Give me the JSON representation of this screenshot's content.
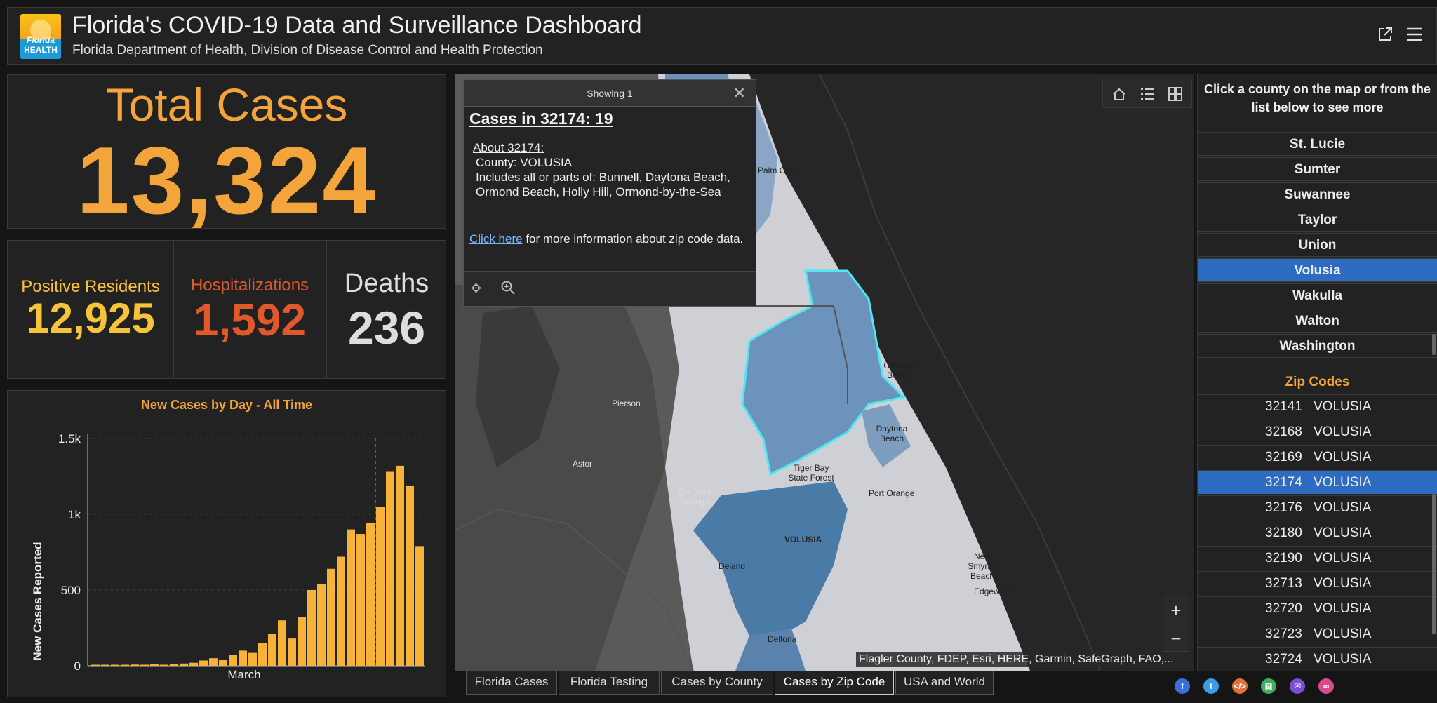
{
  "header": {
    "logo_text_top": "Florida",
    "logo_text_bottom": "HEALTH",
    "title": "Florida's COVID-19 Data and Surveillance Dashboard",
    "subtitle": "Florida Department of Health, Division of Disease Control and Health Protection"
  },
  "total_cases": {
    "label": "Total Cases",
    "value": "13,324"
  },
  "stats": [
    {
      "label": "Positive Residents",
      "value": "12,925",
      "color": "#f7c33b"
    },
    {
      "label": "Hospitalizations",
      "value": "1,592",
      "color": "#e0592a"
    },
    {
      "label": "Deaths",
      "value": "236",
      "color": "#dddddd"
    }
  ],
  "chart_data": {
    "type": "bar",
    "title": "New Cases by Day - All Time",
    "ylabel": "New Cases Reported",
    "xlabel": "",
    "x_tick_labels": [
      "March"
    ],
    "y_ticks": [
      "0",
      "500",
      "1k",
      "1.5k"
    ],
    "ylim": [
      0,
      1500
    ],
    "values": [
      2,
      0,
      5,
      4,
      8,
      5,
      12,
      6,
      10,
      15,
      20,
      35,
      50,
      40,
      70,
      100,
      85,
      150,
      210,
      300,
      180,
      320,
      500,
      540,
      640,
      720,
      900,
      870,
      940,
      1050,
      1280,
      1320,
      1190,
      790
    ],
    "marker_index": 29,
    "bar_color": "#f7b23a"
  },
  "map": {
    "popup": {
      "header": "Showing 1",
      "title": "Cases in 32174: 19",
      "about": "About 32174:",
      "county": "County: VOLUSIA",
      "includes": "Includes all or parts of: Bunnell, Daytona Beach, Ormond Beach, Holly Hill, Ormond-by-the-Sea",
      "link": "Click here",
      "link_rest": "for more information about zip code data."
    },
    "labels": {
      "palm_coast": "Palm Coast",
      "ormond_beach": "Ormond Beach",
      "daytona_beach": "Daytona Beach",
      "pierson": "Pierson",
      "astor": "Astor",
      "de_leon_springs": "De Leon Springs",
      "tiger_bay": "Tiger Bay State Forest",
      "port_orange": "Port Orange",
      "volusia": "VOLUSIA",
      "deland": "Deland",
      "new_smyrna": "New Smyrna Beach",
      "edgewater": "Edgewater",
      "deltona": "Deltona"
    },
    "attribution": "Flagler County, FDEP, Esri, HERE, Garmin, SafeGraph, FAO,...",
    "zoom_in": "+",
    "zoom_out": "−"
  },
  "sidebar": {
    "heading": "Click a county on the map or from the list below to see more",
    "counties": [
      "St. Lucie",
      "Sumter",
      "Suwannee",
      "Taylor",
      "Union",
      "Volusia",
      "Wakulla",
      "Walton",
      "Washington"
    ],
    "selected_county": "Volusia",
    "zip_heading": "Zip Codes",
    "zips": [
      {
        "zip": "32141",
        "county": "VOLUSIA"
      },
      {
        "zip": "32168",
        "county": "VOLUSIA"
      },
      {
        "zip": "32169",
        "county": "VOLUSIA"
      },
      {
        "zip": "32174",
        "county": "VOLUSIA"
      },
      {
        "zip": "32176",
        "county": "VOLUSIA"
      },
      {
        "zip": "32180",
        "county": "VOLUSIA"
      },
      {
        "zip": "32190",
        "county": "VOLUSIA"
      },
      {
        "zip": "32713",
        "county": "VOLUSIA"
      },
      {
        "zip": "32720",
        "county": "VOLUSIA"
      },
      {
        "zip": "32723",
        "county": "VOLUSIA"
      },
      {
        "zip": "32724",
        "county": "VOLUSIA"
      }
    ],
    "selected_zip": "32174"
  },
  "tabs": [
    "Florida Cases",
    "Florida Testing",
    "Cases by County",
    "Cases by Zip Code",
    "USA and World"
  ],
  "active_tab": "Cases by Zip Code",
  "social": [
    {
      "name": "facebook",
      "glyph": "f",
      "color": "#3b6fd8"
    },
    {
      "name": "twitter",
      "glyph": "t",
      "color": "#3a9bea"
    },
    {
      "name": "embed",
      "glyph": "</>",
      "color": "#e0713a"
    },
    {
      "name": "qr",
      "glyph": "▦",
      "color": "#3fae62"
    },
    {
      "name": "email",
      "glyph": "✉",
      "color": "#7a4fd0"
    },
    {
      "name": "link",
      "glyph": "∞",
      "color": "#d84a8a"
    }
  ]
}
